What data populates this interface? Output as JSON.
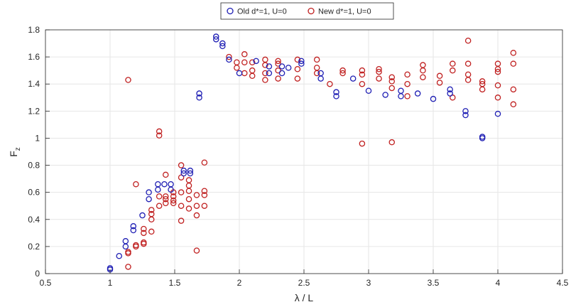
{
  "chart_data": {
    "type": "scatter",
    "title": "",
    "xlabel": "λ / L",
    "ylabel": "F",
    "ylabel_subscript": "z",
    "xlim": [
      0.5,
      4.5
    ],
    "ylim": [
      0,
      1.8
    ],
    "xticks": [
      "0.5",
      "1",
      "1.5",
      "2",
      "2.5",
      "3",
      "3.5",
      "4",
      "4.5"
    ],
    "yticks": [
      "0",
      "0.2",
      "0.4",
      "0.6",
      "0.8",
      "1",
      "1.2",
      "1.4",
      "1.6",
      "1.8"
    ],
    "grid": true,
    "legend_position": "top-center",
    "series": [
      {
        "name": "Old d*=1, U=0",
        "color": "#1f1fb4",
        "marker": "circle-open",
        "points": [
          [
            1.0,
            0.03
          ],
          [
            1.0,
            0.04
          ],
          [
            1.07,
            0.13
          ],
          [
            1.12,
            0.2
          ],
          [
            1.12,
            0.24
          ],
          [
            1.18,
            0.32
          ],
          [
            1.18,
            0.35
          ],
          [
            1.25,
            0.43
          ],
          [
            1.3,
            0.55
          ],
          [
            1.3,
            0.6
          ],
          [
            1.37,
            0.62
          ],
          [
            1.37,
            0.66
          ],
          [
            1.42,
            0.66
          ],
          [
            1.47,
            0.62
          ],
          [
            1.47,
            0.66
          ],
          [
            1.57,
            0.74
          ],
          [
            1.57,
            0.76
          ],
          [
            1.62,
            0.74
          ],
          [
            1.62,
            0.76
          ],
          [
            1.69,
            1.3
          ],
          [
            1.69,
            1.33
          ],
          [
            1.82,
            1.73
          ],
          [
            1.82,
            1.75
          ],
          [
            1.87,
            1.68
          ],
          [
            1.87,
            1.7
          ],
          [
            1.92,
            1.58
          ],
          [
            2.0,
            1.48
          ],
          [
            2.13,
            1.57
          ],
          [
            2.23,
            1.48
          ],
          [
            2.23,
            1.53
          ],
          [
            2.33,
            1.48
          ],
          [
            2.33,
            1.53
          ],
          [
            2.38,
            1.52
          ],
          [
            2.48,
            1.57
          ],
          [
            2.48,
            1.55
          ],
          [
            2.63,
            1.44
          ],
          [
            2.63,
            1.48
          ],
          [
            2.75,
            1.31
          ],
          [
            2.75,
            1.34
          ],
          [
            2.88,
            1.44
          ],
          [
            3.0,
            1.35
          ],
          [
            3.13,
            1.32
          ],
          [
            3.25,
            1.31
          ],
          [
            3.25,
            1.35
          ],
          [
            3.38,
            1.33
          ],
          [
            3.5,
            1.29
          ],
          [
            3.63,
            1.33
          ],
          [
            3.63,
            1.36
          ],
          [
            3.75,
            1.17
          ],
          [
            3.75,
            1.2
          ],
          [
            3.88,
            1.0
          ],
          [
            3.88,
            1.01
          ],
          [
            4.0,
            1.18
          ]
        ]
      },
      {
        "name": "New d*=1, U=0",
        "color": "#c02020",
        "marker": "circle-open",
        "points": [
          [
            1.14,
            1.43
          ],
          [
            1.14,
            0.05
          ],
          [
            1.14,
            0.15
          ],
          [
            1.14,
            0.16
          ],
          [
            1.2,
            0.2
          ],
          [
            1.2,
            0.21
          ],
          [
            1.2,
            0.66
          ],
          [
            1.26,
            0.22
          ],
          [
            1.26,
            0.23
          ],
          [
            1.26,
            0.3
          ],
          [
            1.26,
            0.33
          ],
          [
            1.32,
            0.31
          ],
          [
            1.32,
            0.4
          ],
          [
            1.32,
            0.44
          ],
          [
            1.32,
            0.47
          ],
          [
            1.38,
            0.5
          ],
          [
            1.38,
            0.57
          ],
          [
            1.38,
            1.02
          ],
          [
            1.38,
            1.05
          ],
          [
            1.43,
            0.52
          ],
          [
            1.43,
            0.55
          ],
          [
            1.43,
            0.57
          ],
          [
            1.43,
            0.73
          ],
          [
            1.49,
            0.52
          ],
          [
            1.49,
            0.54
          ],
          [
            1.49,
            0.57
          ],
          [
            1.49,
            0.6
          ],
          [
            1.55,
            0.39
          ],
          [
            1.55,
            0.5
          ],
          [
            1.55,
            0.6
          ],
          [
            1.55,
            0.71
          ],
          [
            1.55,
            0.8
          ],
          [
            1.61,
            0.48
          ],
          [
            1.61,
            0.55
          ],
          [
            1.61,
            0.61
          ],
          [
            1.61,
            0.65
          ],
          [
            1.61,
            0.69
          ],
          [
            1.67,
            0.17
          ],
          [
            1.67,
            0.43
          ],
          [
            1.67,
            0.5
          ],
          [
            1.67,
            0.58
          ],
          [
            1.73,
            0.5
          ],
          [
            1.73,
            0.58
          ],
          [
            1.73,
            0.61
          ],
          [
            1.73,
            0.82
          ],
          [
            1.92,
            1.6
          ],
          [
            1.98,
            1.52
          ],
          [
            1.98,
            1.56
          ],
          [
            2.04,
            1.48
          ],
          [
            2.04,
            1.56
          ],
          [
            2.04,
            1.62
          ],
          [
            2.1,
            1.46
          ],
          [
            2.1,
            1.5
          ],
          [
            2.1,
            1.56
          ],
          [
            2.2,
            1.43
          ],
          [
            2.2,
            1.48
          ],
          [
            2.2,
            1.54
          ],
          [
            2.2,
            1.58
          ],
          [
            2.3,
            1.44
          ],
          [
            2.3,
            1.5
          ],
          [
            2.3,
            1.55
          ],
          [
            2.3,
            1.57
          ],
          [
            2.45,
            1.44
          ],
          [
            2.45,
            1.51
          ],
          [
            2.45,
            1.58
          ],
          [
            2.6,
            1.48
          ],
          [
            2.6,
            1.52
          ],
          [
            2.6,
            1.58
          ],
          [
            2.7,
            1.4
          ],
          [
            2.8,
            1.48
          ],
          [
            2.8,
            1.5
          ],
          [
            2.95,
            0.96
          ],
          [
            2.95,
            1.4
          ],
          [
            2.95,
            1.47
          ],
          [
            2.95,
            1.5
          ],
          [
            3.08,
            1.44
          ],
          [
            3.08,
            1.49
          ],
          [
            3.08,
            1.51
          ],
          [
            3.18,
            0.97
          ],
          [
            3.18,
            1.37
          ],
          [
            3.18,
            1.42
          ],
          [
            3.18,
            1.45
          ],
          [
            3.3,
            1.31
          ],
          [
            3.3,
            1.4
          ],
          [
            3.3,
            1.47
          ],
          [
            3.42,
            1.45
          ],
          [
            3.42,
            1.5
          ],
          [
            3.42,
            1.54
          ],
          [
            3.55,
            1.41
          ],
          [
            3.55,
            1.46
          ],
          [
            3.65,
            1.3
          ],
          [
            3.65,
            1.5
          ],
          [
            3.65,
            1.55
          ],
          [
            3.77,
            1.43
          ],
          [
            3.77,
            1.47
          ],
          [
            3.77,
            1.55
          ],
          [
            3.77,
            1.72
          ],
          [
            3.88,
            1.36
          ],
          [
            3.88,
            1.4
          ],
          [
            3.88,
            1.42
          ],
          [
            4.0,
            1.3
          ],
          [
            4.0,
            1.39
          ],
          [
            4.0,
            1.49
          ],
          [
            4.0,
            1.51
          ],
          [
            4.0,
            1.55
          ],
          [
            4.12,
            1.25
          ],
          [
            4.12,
            1.36
          ],
          [
            4.12,
            1.55
          ],
          [
            4.12,
            1.63
          ]
        ]
      }
    ]
  }
}
